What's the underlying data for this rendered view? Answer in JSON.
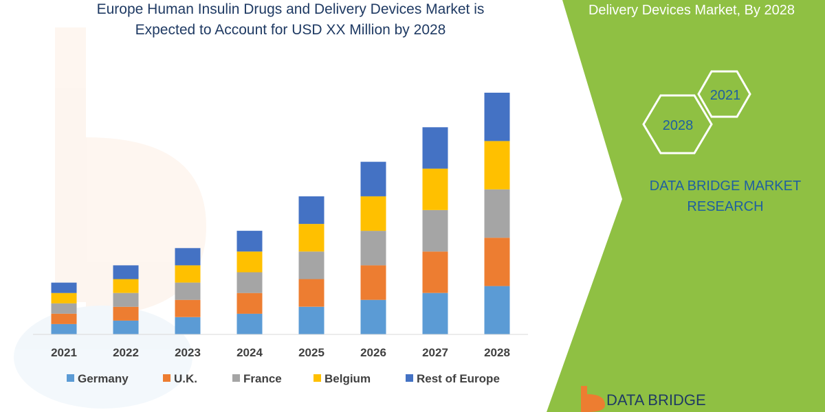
{
  "header": {
    "title_line1": "Europe Human Insulin Drugs and Delivery Devices Market is",
    "title_line2": "Expected to Account for USD XX Million by 2028",
    "side_title": "Delivery Devices Market, By 2028"
  },
  "badges": {
    "year_a": "2021",
    "year_b": "2028"
  },
  "brand": {
    "line1": "DATA BRIDGE MARKET",
    "line2": "RESEARCH",
    "logo_text": "DATA BRIDGE"
  },
  "colors": {
    "Germany": "#5b9bd5",
    "U.K.": "#ed7d31",
    "France": "#a5a5a5",
    "Belgium": "#ffc000",
    "Rest of Europe": "#4472c4",
    "green_panel": "#8fc043",
    "title_text": "#1f3a63"
  },
  "chart_data": {
    "type": "bar",
    "stacked": true,
    "categories": [
      "2021",
      "2022",
      "2023",
      "2024",
      "2025",
      "2026",
      "2027",
      "2028"
    ],
    "series": [
      {
        "name": "Germany",
        "values": [
          3,
          4,
          5,
          6,
          8,
          10,
          12,
          14
        ]
      },
      {
        "name": "U.K.",
        "values": [
          3,
          4,
          5,
          6,
          8,
          10,
          12,
          14
        ]
      },
      {
        "name": "France",
        "values": [
          3,
          4,
          5,
          6,
          8,
          10,
          12,
          14
        ]
      },
      {
        "name": "Belgium",
        "values": [
          3,
          4,
          5,
          6,
          8,
          10,
          12,
          14
        ]
      },
      {
        "name": "Rest of Europe",
        "values": [
          3,
          4,
          5,
          6,
          8,
          10,
          12,
          14
        ]
      }
    ],
    "ylim": [
      0,
      70
    ],
    "grid": false,
    "legend": "bottom",
    "title": "Europe Human Insulin Drugs and Delivery Devices Market is Expected to Account for USD XX Million by 2028"
  }
}
